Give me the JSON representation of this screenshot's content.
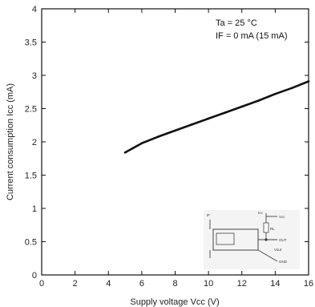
{
  "chart_data": {
    "type": "line",
    "xlabel": "Supply voltage Vcc (V)",
    "ylabel": "Current consumption Icc (mA)",
    "xlim": [
      0,
      16
    ],
    "ylim": [
      0,
      4
    ],
    "x_ticks": [
      "0",
      "2",
      "4",
      "6",
      "8",
      "10",
      "12",
      "14",
      "16"
    ],
    "y_ticks": [
      "0",
      "0.5",
      "1",
      "1.5",
      "2",
      "2.5",
      "3",
      "3.5",
      "4"
    ],
    "grid": false,
    "annotations": [
      "Ta = 25 °C",
      "IF = 0 mA (15 mA)"
    ],
    "series": [
      {
        "x": [
          5,
          5.5,
          6,
          7,
          8,
          9,
          10,
          11,
          12,
          13,
          14,
          15,
          16
        ],
        "y": [
          1.84,
          1.91,
          1.98,
          2.08,
          2.17,
          2.26,
          2.35,
          2.44,
          2.53,
          2.62,
          2.72,
          2.81,
          2.91
        ]
      }
    ],
    "inset_circuit": {
      "labels": [
        "IF",
        "Icc",
        "Vcc",
        "RL",
        "OUT",
        "Vout",
        "GND"
      ]
    }
  }
}
